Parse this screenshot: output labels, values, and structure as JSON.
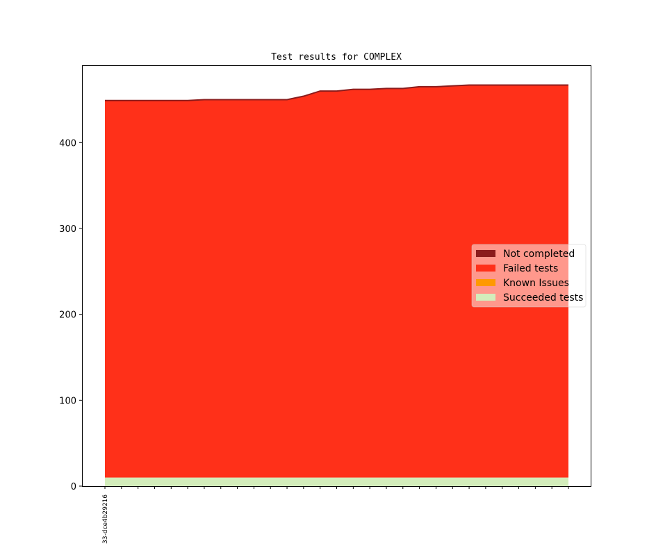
{
  "chart_data": {
    "type": "area",
    "title": "Test results for COMPLEX",
    "xlabel": "",
    "ylabel": "",
    "ylim": [
      0,
      490
    ],
    "yticks": [
      0,
      100,
      200,
      300,
      400
    ],
    "x_tick_labels": [
      "33-dce4b29216"
    ],
    "n_points": 29,
    "legend_position": "center-right",
    "grid": false,
    "series": [
      {
        "name": "Succeeded tests",
        "color": "#d3edbb",
        "values": [
          10,
          10,
          10,
          10,
          10,
          10,
          10,
          10,
          10,
          10,
          10,
          10,
          10,
          10,
          10,
          10,
          10,
          10,
          10,
          10,
          10,
          10,
          10,
          10,
          10,
          10,
          10,
          10,
          10
        ]
      },
      {
        "name": "Known Issues",
        "color": "#ff9900",
        "values": [
          0,
          0,
          0,
          0,
          0,
          0,
          0,
          0,
          0,
          0,
          0,
          0,
          0,
          0,
          0,
          0,
          0,
          0,
          0,
          0,
          0,
          0,
          0,
          0,
          0,
          0,
          0,
          0,
          0
        ]
      },
      {
        "name": "Failed tests",
        "color": "#ff3019",
        "values": [
          439,
          439,
          439,
          439,
          439,
          439,
          440,
          440,
          440,
          440,
          440,
          440,
          444,
          450,
          450,
          452,
          452,
          453,
          453,
          455,
          455,
          456,
          457,
          457,
          457,
          457,
          457,
          457,
          457
        ]
      },
      {
        "name": "Not completed",
        "color": "#8b1c1c",
        "values": [
          0,
          0,
          0,
          0,
          0,
          0,
          0,
          0,
          0,
          0,
          0,
          0,
          0,
          0,
          0,
          0,
          0,
          0,
          0,
          0,
          0,
          0,
          0,
          0,
          0,
          0,
          0,
          0,
          0
        ]
      }
    ],
    "legend_order": [
      "Not completed",
      "Failed tests",
      "Known Issues",
      "Succeeded tests"
    ]
  }
}
